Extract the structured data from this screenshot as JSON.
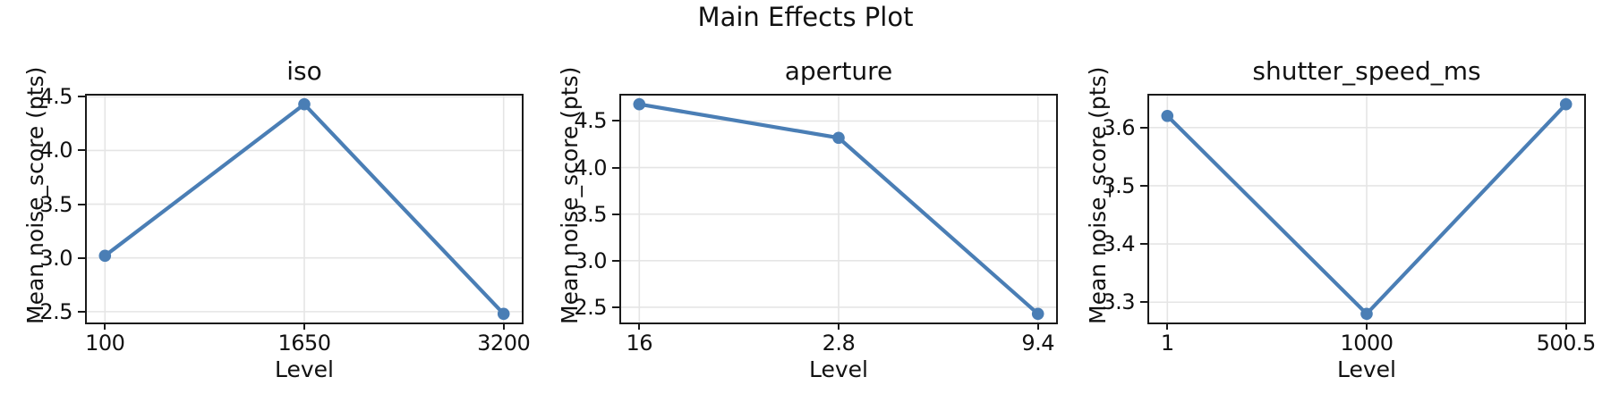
{
  "figure": {
    "suptitle": "Main Effects Plot"
  },
  "chart_data": {
    "type": "line",
    "suptitle": "Main Effects Plot",
    "line_color": "#4a7eb5",
    "marker": "circle",
    "grid": true,
    "subplots": [
      {
        "title": "iso",
        "xlabel": "Level",
        "ylabel": "Mean noise_score (pts)",
        "categories": [
          "100",
          "1650",
          "3200"
        ],
        "values": [
          3.02,
          4.43,
          2.48
        ],
        "yticks": [
          2.5,
          3.0,
          3.5,
          4.0,
          4.5
        ],
        "ylim": [
          2.3825,
          4.5275
        ]
      },
      {
        "title": "aperture",
        "xlabel": "Level",
        "ylabel": "Mean noise_score (pts)",
        "categories": [
          "16",
          "2.8",
          "9.4"
        ],
        "values": [
          4.68,
          4.32,
          2.43
        ],
        "yticks": [
          2.5,
          3.0,
          3.5,
          4.0,
          4.5
        ],
        "ylim": [
          2.3175,
          4.7925
        ]
      },
      {
        "title": "shutter_speed_ms",
        "xlabel": "Level",
        "ylabel": "Mean noise_score (pts)",
        "categories": [
          "1",
          "1000",
          "500.5"
        ],
        "values": [
          3.62,
          3.28,
          3.64
        ],
        "yticks": [
          3.3,
          3.4,
          3.5,
          3.6
        ],
        "ylim": [
          3.262,
          3.658
        ]
      }
    ]
  }
}
